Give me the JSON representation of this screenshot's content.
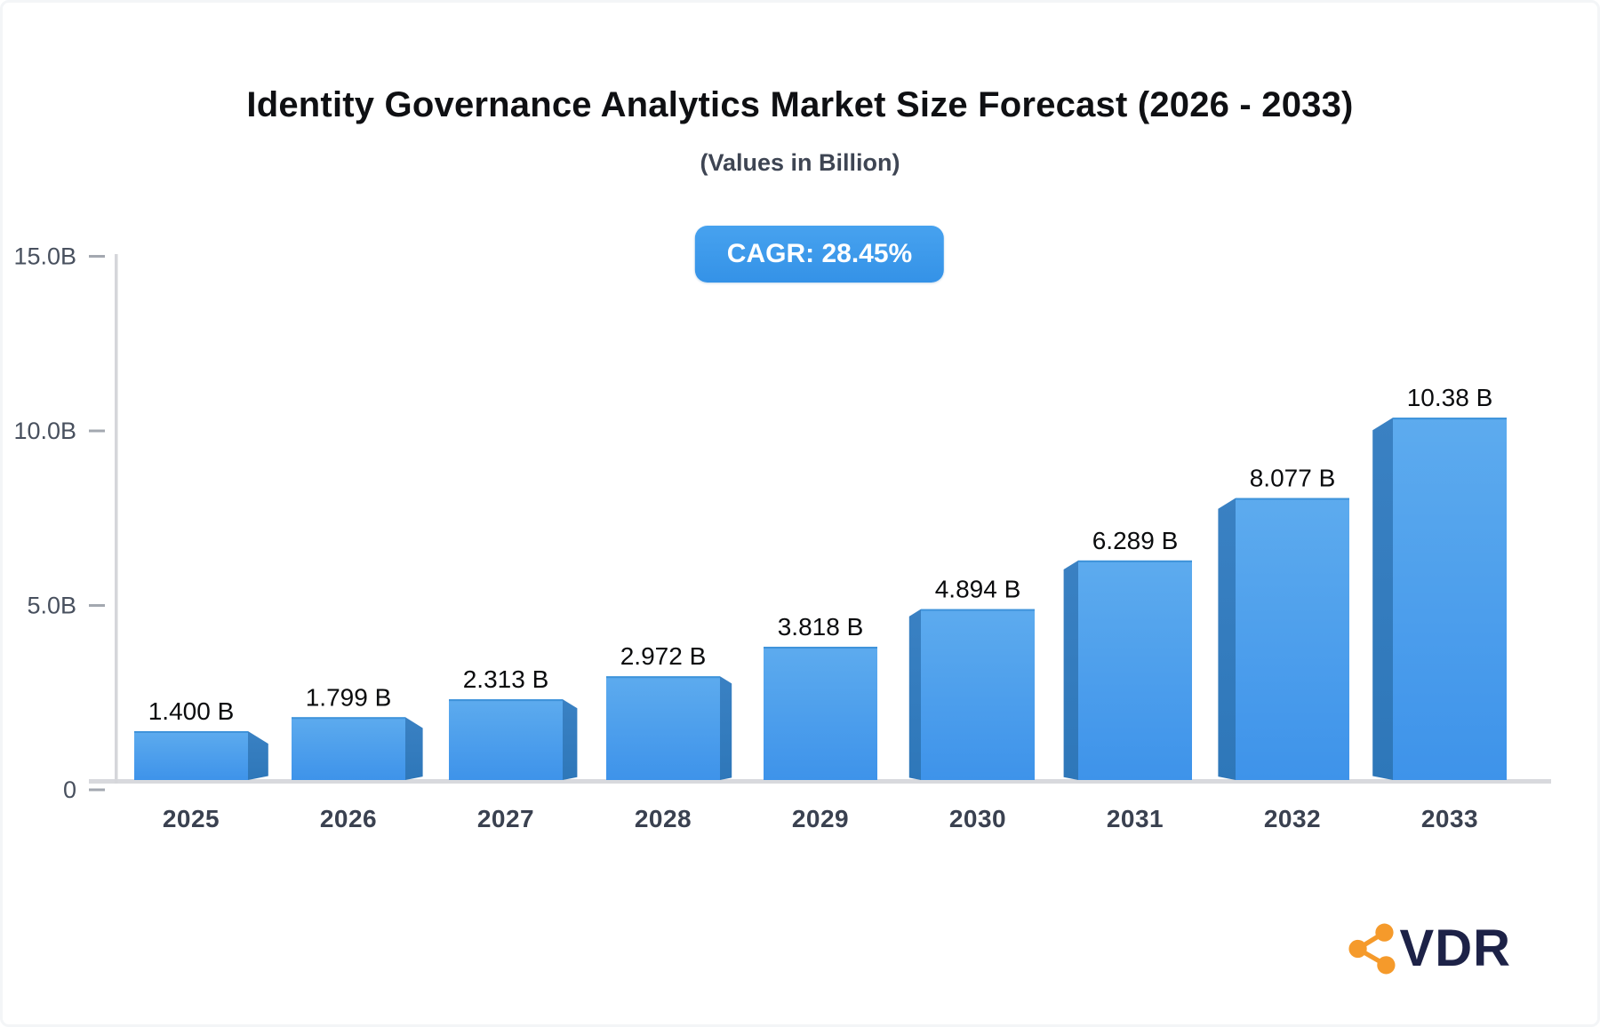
{
  "chart_data": {
    "type": "bar",
    "title": "Identity Governance Analytics Market Size Forecast (2026 - 2033)",
    "subtitle": "(Values in Billion)",
    "annotation": "CAGR: 28.45%",
    "categories": [
      "2025",
      "2026",
      "2027",
      "2028",
      "2029",
      "2030",
      "2031",
      "2032",
      "2033"
    ],
    "values": [
      1.4,
      1.799,
      2.313,
      2.972,
      3.818,
      4.894,
      6.289,
      8.077,
      10.38
    ],
    "value_labels": [
      "1.400 B",
      "1.799 B",
      "2.313 B",
      "2.972 B",
      "3.818 B",
      "4.894 B",
      "6.289 B",
      "8.077 B",
      "10.38 B"
    ],
    "xlabel": "",
    "ylabel": "",
    "ylim": [
      0,
      15
    ],
    "yticks": [
      0,
      5,
      10,
      15
    ],
    "ytick_labels": [
      "0",
      "5.0B",
      "10.0B",
      "15.0B"
    ],
    "grid": false,
    "legend": false,
    "bar_style": "3d-perspective",
    "colors": {
      "face_top": "#5dabee",
      "face_bottom": "#3e93ea",
      "side": "#2e77b9",
      "top_edge": "#3f93da",
      "axis_line": "#d5d6da",
      "baseline": "#d8d9dd",
      "tick_dash": "#a3a8b0",
      "tick_label": "#48505e",
      "year_label": "#3a4150",
      "value_label": "#0b0c0e"
    }
  },
  "badge": {
    "bg": "#3c9ae9"
  },
  "logo": {
    "text": "VDR",
    "icon": "share-network-icon",
    "icon_color": "#f59a2b",
    "text_color": "#1d2247"
  }
}
